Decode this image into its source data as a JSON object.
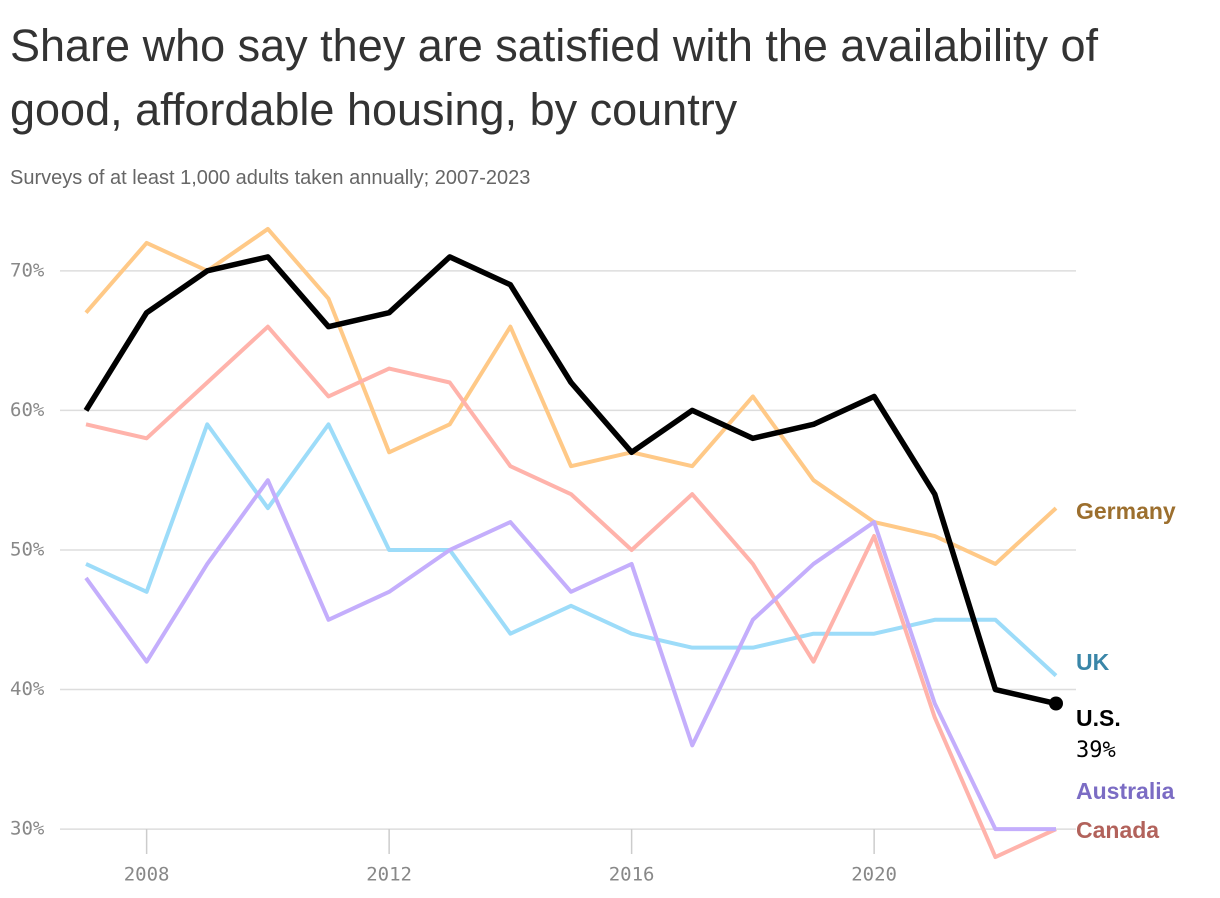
{
  "chart_data": {
    "type": "line",
    "title": "Share who say they are satisfied with the availability of good, affordable housing, by country",
    "subtitle": "Surveys of at least 1,000 adults taken annually; 2007-2023",
    "x": [
      2007,
      2008,
      2009,
      2010,
      2011,
      2012,
      2013,
      2014,
      2015,
      2016,
      2017,
      2018,
      2019,
      2020,
      2021,
      2022,
      2023
    ],
    "xlim": [
      2007,
      2023
    ],
    "xticks": [
      2008,
      2012,
      2016,
      2020
    ],
    "ylim": [
      27,
      74
    ],
    "yticks": [
      {
        "value": 30,
        "label": "30%"
      },
      {
        "value": 40,
        "label": "40%"
      },
      {
        "value": 50,
        "label": "50%"
      },
      {
        "value": 60,
        "label": "60%"
      },
      {
        "value": 70,
        "label": "70%"
      }
    ],
    "grid": true,
    "series": [
      {
        "name": "Germany",
        "color": "#ffc987",
        "label_color": "#9c6f2e",
        "values": [
          67,
          72,
          70,
          73,
          68,
          57,
          59,
          66,
          56,
          57,
          56,
          61,
          55,
          52,
          51,
          49,
          53
        ]
      },
      {
        "name": "UK",
        "color": "#9ddcf9",
        "label_color": "#3a86a8",
        "values": [
          49,
          47,
          59,
          53,
          59,
          50,
          50,
          44,
          46,
          44,
          43,
          43,
          44,
          44,
          45,
          45,
          41
        ]
      },
      {
        "name": "Canada",
        "color": "#ffb3ab",
        "label_color": "#b2625b",
        "values": [
          59,
          58,
          62,
          66,
          61,
          63,
          62,
          56,
          54,
          50,
          54,
          49,
          42,
          51,
          38,
          28,
          30
        ]
      },
      {
        "name": "Australia",
        "color": "#c4aefc",
        "label_color": "#7b6cc4",
        "values": [
          48,
          42,
          49,
          55,
          45,
          47,
          50,
          52,
          47,
          49,
          36,
          45,
          49,
          52,
          39,
          30,
          30
        ]
      },
      {
        "name": "U.S.",
        "color": "#000000",
        "label_color": "#000000",
        "values": [
          60,
          67,
          70,
          71,
          66,
          67,
          71,
          69,
          62,
          57,
          60,
          58,
          59,
          61,
          54,
          40,
          39
        ],
        "value_labels": [
          null,
          null,
          null,
          null,
          null,
          null,
          null,
          null,
          null,
          null,
          null,
          null,
          null,
          null,
          null,
          null,
          "39%"
        ]
      }
    ]
  }
}
